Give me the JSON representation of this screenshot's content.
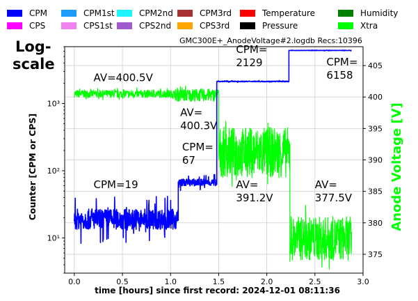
{
  "legend": {
    "items": [
      {
        "label": "CPM",
        "color": "#0000ff"
      },
      {
        "label": "CPS",
        "color": "#ff00ff"
      },
      {
        "label": "CPM1st",
        "color": "#1e9bff"
      },
      {
        "label": "CPS1st",
        "color": "#ee82ee"
      },
      {
        "label": "CPM2nd",
        "color": "#1ff5ff"
      },
      {
        "label": "CPS2nd",
        "color": "#a05ccc"
      },
      {
        "label": "CPM3rd",
        "color": "#a83232"
      },
      {
        "label": "CPS3rd",
        "color": "#ffa500"
      },
      {
        "label": "Temperature",
        "color": "#ff0000"
      },
      {
        "label": "Pressure",
        "color": "#000000"
      },
      {
        "label": "Humidity",
        "color": "#008000"
      },
      {
        "label": "Xtra",
        "color": "#00ff00"
      }
    ]
  },
  "corner_label": {
    "line1": "Log-",
    "line2": "scale"
  },
  "file_title": "GMC300E+_AnodeVoltage#2.logdb    Recs:10396",
  "chart_data": {
    "type": "line",
    "xlabel": "time [hours] since first record: 2024-12-01 08:11:36",
    "ylabel_left": "Counter  [CPM or CPS]",
    "ylabel_right": "Anode Voltage [V]",
    "xlim": [
      -0.1,
      3.0
    ],
    "ylim_left_log": [
      3,
      7000
    ],
    "ylim_right": [
      372,
      408
    ],
    "x_ticks": [
      "0.0",
      "0.5",
      "1.0",
      "1.5",
      "2.0",
      "2.5",
      "3.0"
    ],
    "x_tick_values": [
      0,
      0.5,
      1.0,
      1.5,
      2.0,
      2.5,
      3.0
    ],
    "y_left_ticks": [
      "10¹",
      "10²",
      "10³"
    ],
    "y_left_tick_values": [
      10,
      100,
      1000
    ],
    "y_right_ticks": [
      "375",
      "380",
      "385",
      "390",
      "395",
      "400",
      "405"
    ],
    "y_right_tick_values": [
      375,
      380,
      385,
      390,
      395,
      400,
      405
    ],
    "grid": true,
    "series": [
      {
        "name": "CPM",
        "color": "#0000ff",
        "axis": "left",
        "segments": [
          {
            "x_start": 0.0,
            "x_end": 1.08,
            "level": 19,
            "spread": 0.35
          },
          {
            "x_start": 1.08,
            "x_end": 1.48,
            "level": 67,
            "spread": 0.12
          },
          {
            "x_start": 1.48,
            "x_end": 2.23,
            "level": 2129,
            "spread": 0.015
          },
          {
            "x_start": 2.23,
            "x_end": 2.88,
            "level": 6158,
            "spread": 0.008
          }
        ]
      },
      {
        "name": "Xtra",
        "color": "#00ff00",
        "axis": "right",
        "segments": [
          {
            "x_start": 0.0,
            "x_end": 1.05,
            "level": 400.5,
            "spread": 0.6
          },
          {
            "x_start": 1.05,
            "x_end": 1.5,
            "level": 400.3,
            "spread": 1.0
          },
          {
            "x_start": 1.5,
            "x_end": 2.24,
            "level": 391.2,
            "spread": 4.0
          },
          {
            "x_start": 2.24,
            "x_end": 2.88,
            "level": 377.5,
            "spread": 3.5
          }
        ]
      }
    ],
    "annotations": [
      {
        "text": "AV=400.5V",
        "x": 0.2,
        "y_right": 402.5
      },
      {
        "text": "AV=\n400.3V",
        "x": 1.1,
        "y_right": 397
      },
      {
        "text": "CPM=\n2129",
        "x": 1.68,
        "y_right": 407
      },
      {
        "text": "CPM=\n6158",
        "x": 2.62,
        "y_right": 405
      },
      {
        "text": "CPM=\n67",
        "x": 1.12,
        "y_right": 391.5
      },
      {
        "text": "CPM=19",
        "x": 0.2,
        "y_right": 385.5
      },
      {
        "text": "AV=\n391.2V",
        "x": 1.68,
        "y_right": 385.5
      },
      {
        "text": "AV=\n377.5V",
        "x": 2.5,
        "y_right": 385.5
      }
    ]
  }
}
